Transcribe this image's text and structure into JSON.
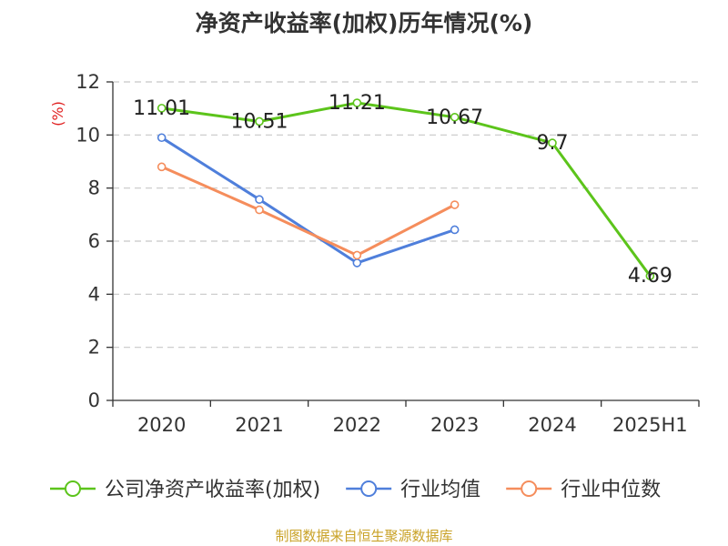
{
  "title": "净资产收益率(加权)历年情况(%)",
  "source": "制图数据来自恒生聚源数据库",
  "chart_data": {
    "type": "line",
    "categories": [
      "2020",
      "2021",
      "2022",
      "2023",
      "2024",
      "2025H1"
    ],
    "ylabel": "(%)",
    "ylim": [
      0,
      12
    ],
    "yticks": [
      0,
      2,
      4,
      6,
      8,
      10,
      12
    ],
    "grid": true,
    "legend_position": "bottom",
    "series": [
      {
        "name": "公司净资产收益率(加权)",
        "color": "#5cc41b",
        "values": [
          11.01,
          10.51,
          11.21,
          10.67,
          9.7,
          4.69
        ],
        "labels": [
          "11.01",
          "10.51",
          "11.21",
          "10.67",
          "9.7",
          "4.69"
        ]
      },
      {
        "name": "行业均值",
        "color": "#4f7fdb",
        "values": [
          9.9,
          7.57,
          5.18,
          6.43,
          null,
          null
        ]
      },
      {
        "name": "行业中位数",
        "color": "#f58d5c",
        "values": [
          8.8,
          7.18,
          5.47,
          7.37,
          null,
          null
        ]
      }
    ]
  }
}
